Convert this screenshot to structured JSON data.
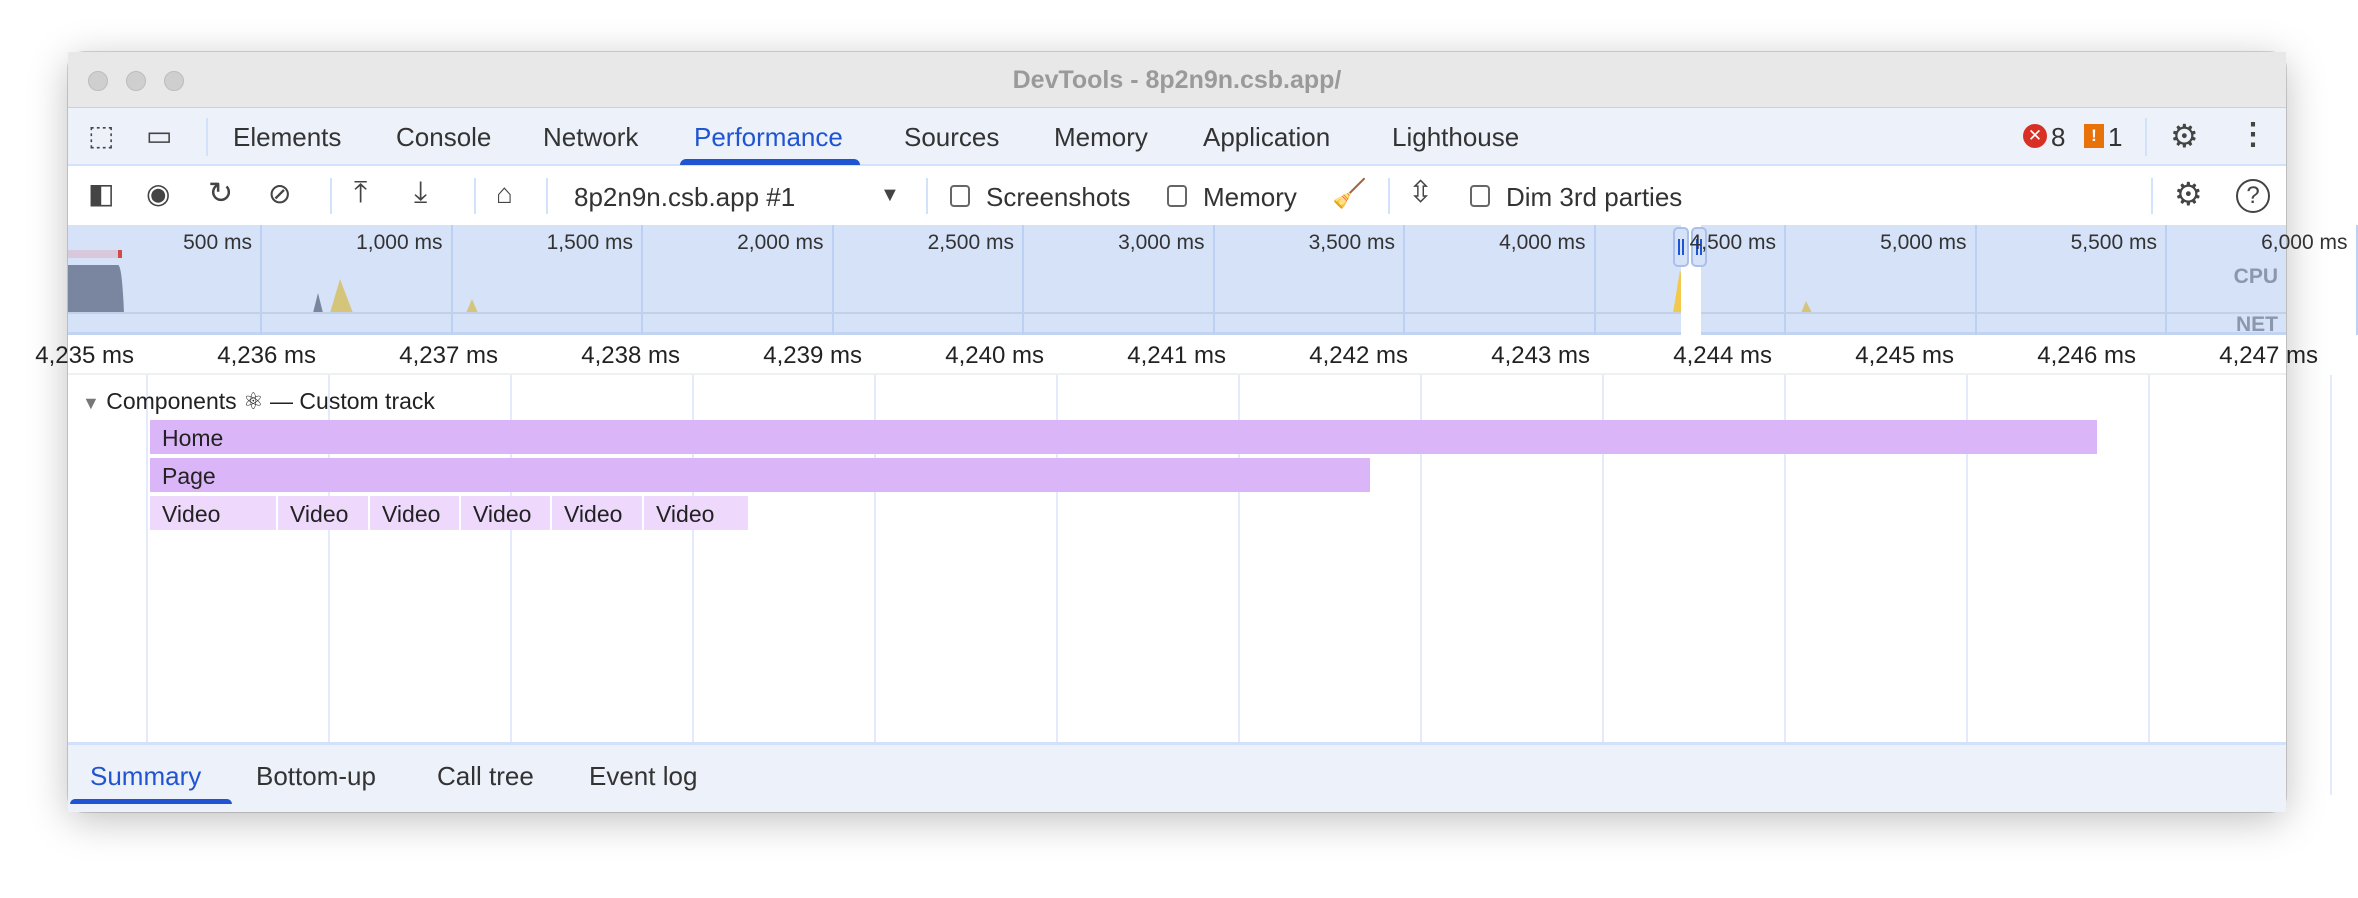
{
  "window": {
    "title": "DevTools - 8p2n9n.csb.app/"
  },
  "tabs": [
    {
      "label": "Elements",
      "active": false
    },
    {
      "label": "Console",
      "active": false
    },
    {
      "label": "Network",
      "active": false
    },
    {
      "label": "Performance",
      "active": true
    },
    {
      "label": "Sources",
      "active": false
    },
    {
      "label": "Memory",
      "active": false
    },
    {
      "label": "Application",
      "active": false
    },
    {
      "label": "Lighthouse",
      "active": false
    }
  ],
  "status": {
    "errors": "8",
    "warnings": "1",
    "error_color": "#d93025",
    "warning_color": "#e8710a"
  },
  "toolbar": {
    "recording_select": "8p2n9n.csb.app #1",
    "screenshots_label": "Screenshots",
    "memory_label": "Memory",
    "dim_label": "Dim 3rd parties",
    "screenshots_checked": false,
    "memory_checked": false,
    "dim_checked": false
  },
  "overview": {
    "ticks": [
      "500 ms",
      "1,000 ms",
      "1,500 ms",
      "2,000 ms",
      "2,500 ms",
      "3,000 ms",
      "3,500 ms",
      "4,000 ms",
      "4,500 ms",
      "5,000 ms",
      "5,500 ms",
      "6,000 ms"
    ],
    "cpu_label": "CPU",
    "net_label": "NET"
  },
  "ruler": {
    "ticks": [
      "4,235 ms",
      "4,236 ms",
      "4,237 ms",
      "4,238 ms",
      "4,239 ms",
      "4,240 ms",
      "4,241 ms",
      "4,242 ms",
      "4,243 ms",
      "4,244 ms",
      "4,245 ms",
      "4,246 ms",
      "4,247 ms"
    ]
  },
  "track": {
    "header": "Components ⚛ — Custom track",
    "home": "Home",
    "page": "Page",
    "videos": [
      "Video",
      "Video",
      "Video",
      "Video",
      "Video",
      "Video"
    ],
    "bar_color": "#dab6f8",
    "light_bar_color": "#eed8fc"
  },
  "bottom_tabs": [
    {
      "label": "Summary",
      "active": true
    },
    {
      "label": "Bottom-up",
      "active": false
    },
    {
      "label": "Call tree",
      "active": false
    },
    {
      "label": "Event log",
      "active": false
    }
  ]
}
